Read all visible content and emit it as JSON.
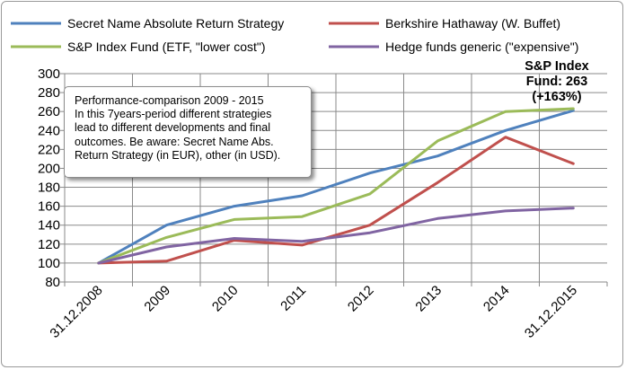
{
  "chart_data": {
    "type": "line",
    "categories": [
      "31.12.2008",
      "2009",
      "2010",
      "2011",
      "2012",
      "2013",
      "2014",
      "31.12.2015"
    ],
    "ylim": [
      80,
      300
    ],
    "yticks": [
      80,
      100,
      120,
      140,
      160,
      180,
      200,
      220,
      240,
      260,
      280,
      300
    ],
    "grid": true,
    "legend_position": "top",
    "series": [
      {
        "name": "Secret Name Absolute Return Strategy",
        "color": "#4f81bd",
        "values": [
          100,
          140,
          160,
          171,
          195,
          213,
          240,
          261
        ]
      },
      {
        "name": "Berkshire Hathaway (W. Buffet)",
        "color": "#c0504d",
        "values": [
          100,
          102,
          124,
          119,
          140,
          185,
          233,
          205
        ]
      },
      {
        "name": "S&P Index Fund (ETF, \"lower cost\")",
        "color": "#9bbb59",
        "values": [
          100,
          127,
          146,
          149,
          173,
          229,
          260,
          263
        ]
      },
      {
        "name": "Hedge funds generic (\"expensive\")",
        "color": "#8064a2",
        "values": [
          100,
          117,
          126,
          123,
          132,
          147,
          155,
          158
        ]
      }
    ]
  },
  "note": {
    "lines": [
      "Performance-comparison 2009 - 2015",
      "In this 7years-period different strategies",
      "lead to different developments and final",
      "outcomes. Be aware: Secret Name Abs.",
      "Return Strategy (in EUR), other (in USD)."
    ]
  },
  "callout": {
    "lines": [
      "S&P Index",
      "Fund: 263",
      "(+163%)"
    ]
  }
}
